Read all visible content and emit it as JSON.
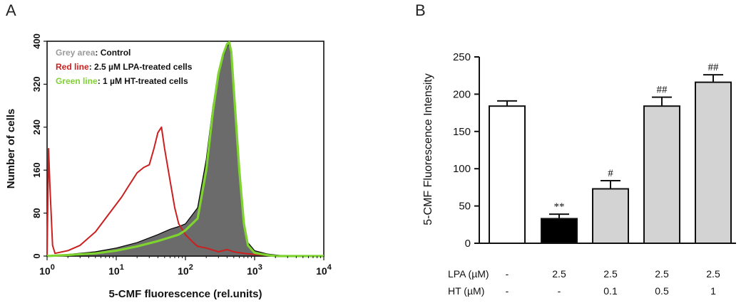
{
  "chart_data": [
    {
      "panel": "A",
      "type": "line",
      "xscale": "log",
      "xlim": [
        1,
        10000
      ],
      "ylim": [
        0,
        400
      ],
      "xlabel": "5-CMF fluorescence (rel.units)",
      "ylabel": "Number of cells",
      "x_ticks": [
        {
          "value": 1,
          "base": "10",
          "exp": "0"
        },
        {
          "value": 10,
          "base": "10",
          "exp": "1"
        },
        {
          "value": 100,
          "base": "10",
          "exp": "2"
        },
        {
          "value": 1000,
          "base": "10",
          "exp": "3"
        },
        {
          "value": 10000,
          "base": "10",
          "exp": "4"
        }
      ],
      "y_ticks": [
        0,
        80,
        160,
        240,
        320,
        400
      ],
      "legend": [
        {
          "key": "Grey area",
          "text": ": Control",
          "color": "#9a9a9a"
        },
        {
          "key": "Red line",
          "text": ": 2.5 µM LPA-treated cells",
          "color": "#cc1f1f"
        },
        {
          "key": "Green line",
          "text": ": 1 µM HT-treated cells",
          "color": "#7ed32f"
        }
      ],
      "series": [
        {
          "name": "Control",
          "style": "area",
          "color": "#6b6b6b",
          "x": [
            1,
            2,
            5,
            10,
            20,
            40,
            60,
            80,
            100,
            150,
            200,
            250,
            300,
            350,
            400,
            430,
            460,
            500,
            600,
            700,
            800,
            1000,
            1500,
            2000,
            3000,
            10000
          ],
          "y": [
            0,
            3,
            8,
            15,
            25,
            40,
            50,
            55,
            60,
            90,
            180,
            280,
            340,
            370,
            390,
            395,
            370,
            300,
            150,
            60,
            25,
            10,
            4,
            2,
            0,
            0
          ]
        },
        {
          "name": "LPA-treated cells",
          "style": "line",
          "color": "#cc1f1f",
          "x": [
            1,
            1.05,
            1.1,
            1.2,
            1.3,
            2,
            3,
            5,
            8,
            12,
            15,
            20,
            25,
            30,
            35,
            40,
            45,
            50,
            60,
            70,
            80,
            100,
            130,
            150,
            200,
            300,
            400,
            500,
            700,
            1000,
            2000,
            10000
          ],
          "y": [
            0,
            200,
            130,
            20,
            5,
            10,
            20,
            45,
            80,
            110,
            130,
            155,
            165,
            170,
            200,
            230,
            240,
            200,
            140,
            90,
            60,
            40,
            25,
            18,
            15,
            8,
            12,
            8,
            5,
            3,
            0,
            0
          ]
        },
        {
          "name": "HT-treated cells",
          "style": "line",
          "color": "#7ed32f",
          "x": [
            1,
            2,
            5,
            10,
            20,
            40,
            60,
            80,
            100,
            150,
            200,
            250,
            300,
            350,
            400,
            430,
            460,
            500,
            600,
            700,
            800,
            1000,
            1500,
            2000,
            3000,
            10000
          ],
          "y": [
            0,
            2,
            5,
            10,
            18,
            28,
            35,
            40,
            48,
            70,
            160,
            270,
            340,
            375,
            395,
            398,
            380,
            310,
            160,
            60,
            20,
            6,
            2,
            0,
            0,
            0
          ]
        }
      ]
    },
    {
      "panel": "B",
      "type": "bar",
      "ylabel": "5-CMF Fluorescence Intensity",
      "ylim": [
        0,
        250
      ],
      "y_ticks": [
        0,
        50,
        100,
        150,
        200,
        250
      ],
      "values": [
        184,
        33,
        73,
        184,
        216
      ],
      "errors": [
        7,
        6,
        11,
        12,
        10
      ],
      "fills": [
        "#ffffff",
        "#000000",
        "#d3d3d3",
        "#d3d3d3",
        "#d3d3d3"
      ],
      "significance": [
        "",
        "**",
        "#",
        "##",
        "##"
      ],
      "conditions": [
        {
          "label": "LPA (µM)",
          "values": [
            "-",
            "2.5",
            "2.5",
            "2.5",
            "2.5"
          ]
        },
        {
          "label": "HT (µM)",
          "values": [
            "-",
            "-",
            "0.1",
            "0.5",
            "1"
          ]
        }
      ]
    }
  ],
  "panels": {
    "a_letter": "A",
    "b_letter": "B"
  }
}
